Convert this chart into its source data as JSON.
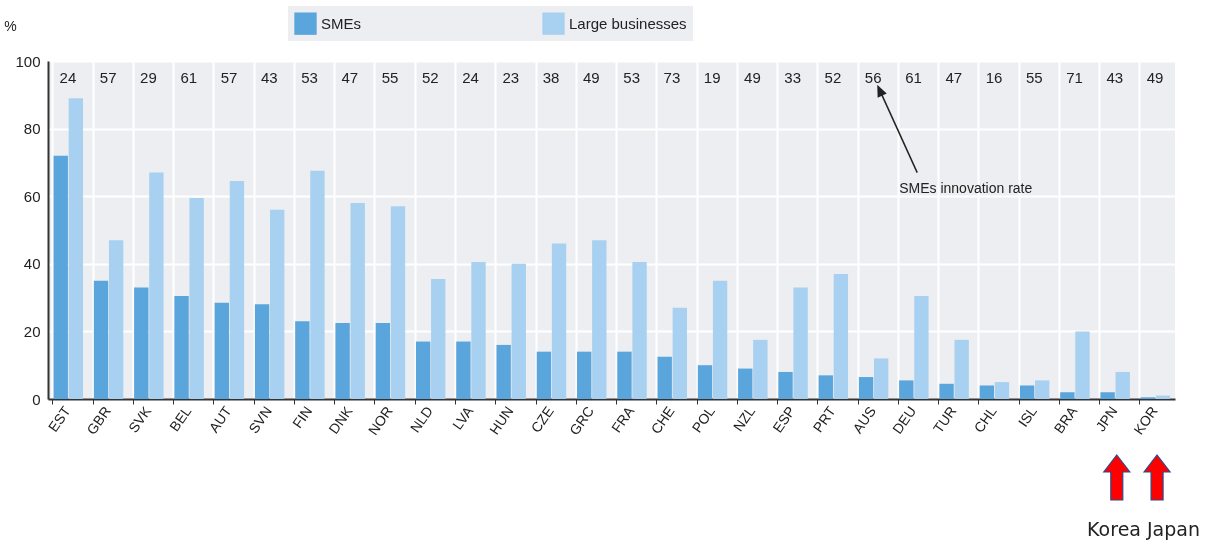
{
  "chart_data": {
    "type": "bar",
    "ylabel": "%",
    "categories": [
      "EST",
      "GBR",
      "SVK",
      "BEL",
      "AUT",
      "SVN",
      "FIN",
      "DNK",
      "NOR",
      "NLD",
      "LVA",
      "HUN",
      "CZE",
      "GRC",
      "FRA",
      "CHE",
      "POL",
      "NZL",
      "ESP",
      "PRT",
      "AUS",
      "DEU",
      "TUR",
      "CHL",
      "ISL",
      "BRA",
      "JPN",
      "KOR"
    ],
    "series": [
      {
        "name": "SMEs",
        "color": "#5aa5dc",
        "values": [
          72,
          35,
          33,
          30.5,
          28.5,
          28,
          23,
          22.5,
          22.5,
          17,
          17,
          16,
          14,
          14,
          14,
          12.5,
          10,
          9,
          8,
          7,
          6.5,
          5.5,
          4.5,
          4,
          4,
          2,
          2,
          0.5
        ]
      },
      {
        "name": "Large businesses",
        "color": "#a8d0f0",
        "values": [
          89,
          47,
          67,
          59.5,
          64.5,
          56,
          67.5,
          58,
          57,
          35.5,
          40.5,
          40,
          46,
          47,
          40.5,
          27,
          35,
          17.5,
          33,
          37,
          12,
          30.5,
          17.5,
          5,
          5.5,
          20,
          8,
          1
        ]
      }
    ],
    "ylim": [
      0,
      100
    ],
    "yticks": [
      0,
      20,
      40,
      60,
      80,
      100
    ],
    "grid": true,
    "legend": "top",
    "annotations": [
      "24",
      "57",
      "29",
      "61",
      "57",
      "43",
      "53",
      "47",
      "55",
      "52",
      "24",
      "23",
      "38",
      "49",
      "53",
      "73",
      "19",
      "49",
      "33",
      "52",
      "56",
      "61",
      "47",
      "16",
      "55",
      "71",
      "43",
      "49",
      "SMEs innovation rate",
      "Korea Japan"
    ]
  }
}
